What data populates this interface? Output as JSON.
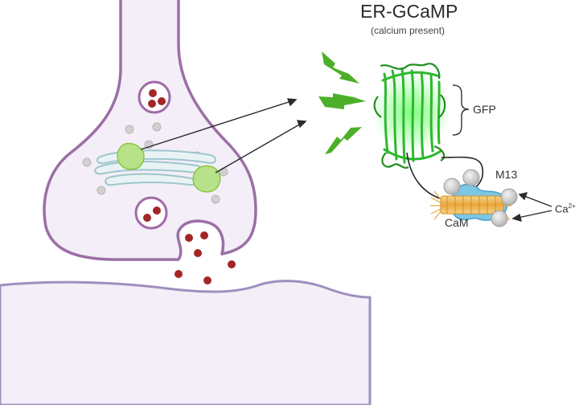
{
  "diagram": {
    "title": "ER-GCaMP",
    "subtitle": "(calcium present)",
    "labels": {
      "gfp": "GFP",
      "m13": "M13",
      "cam": "CaM",
      "calcium": "Ca",
      "calcium_charge": "2+"
    }
  },
  "colors": {
    "neuron_fill": "#f3eef7",
    "neuron_outline": "#9b6fa6",
    "vesicle_cargo": "#a32626",
    "calcium_ion": "#c9c9c9",
    "er_fill": "#e9f3f5",
    "er_outline": "#9ec6cc",
    "sensor_green": "#8cc63f",
    "gfp_green": "#2bb52b",
    "cam_blue": "#7cc6e6",
    "m13_orange": "#e8a63a"
  }
}
